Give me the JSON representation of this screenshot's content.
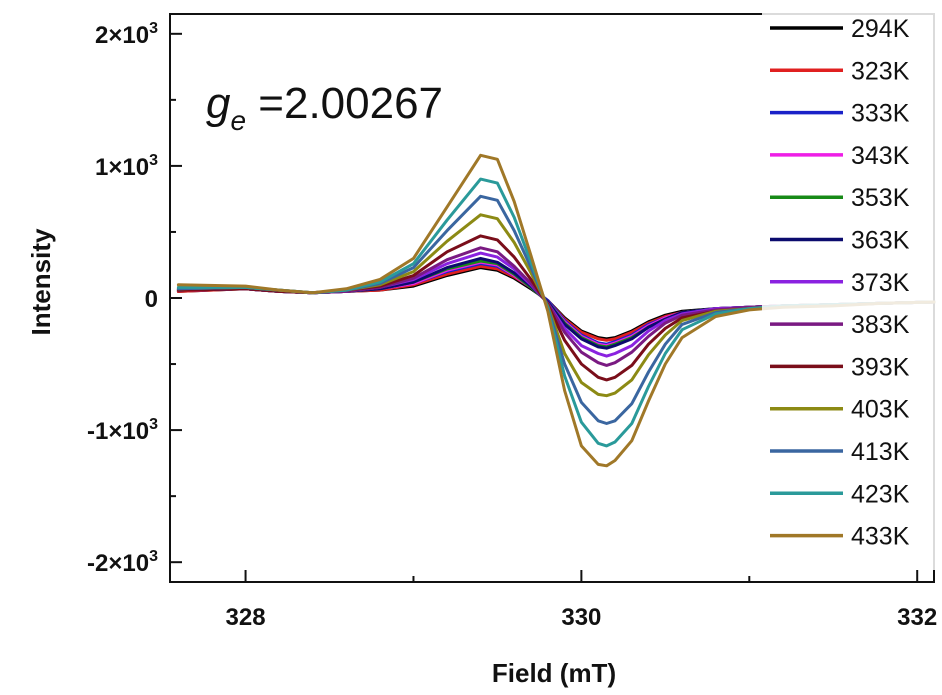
{
  "chart_data": {
    "type": "line",
    "xlabel": "Field (mT)",
    "ylabel": "Intensity",
    "xlim": [
      327.55,
      332.1
    ],
    "ylim": [
      -2150,
      2150
    ],
    "x_ticks": [
      328,
      330,
      332
    ],
    "x_tick_labels": [
      "328",
      "330",
      "332"
    ],
    "y_ticks": [
      2000,
      1000,
      0,
      -1000,
      -2000
    ],
    "y_tick_labels": [
      {
        "mantissa": "2×10",
        "exp": "3"
      },
      {
        "mantissa": "1×10",
        "exp": "3"
      },
      {
        "mantissa": "0",
        "exp": ""
      },
      {
        "mantissa": "-1×10",
        "exp": "3"
      },
      {
        "mantissa": "-2×10",
        "exp": "3"
      }
    ],
    "annotation": {
      "symbol": "g",
      "subscript": "e",
      "text": " =2.00267"
    },
    "legend_position": "top-right",
    "grid": false,
    "x": [
      327.6,
      328.0,
      328.2,
      328.4,
      328.6,
      328.8,
      329.0,
      329.2,
      329.4,
      329.5,
      329.6,
      329.7,
      329.8,
      329.9,
      330.0,
      330.1,
      330.15,
      330.2,
      330.3,
      330.4,
      330.5,
      330.6,
      330.8,
      331.0,
      331.2,
      331.5,
      331.8,
      332.1
    ],
    "series": [
      {
        "name": "294K",
        "color": "#000000",
        "values": [
          50,
          70,
          50,
          40,
          50,
          60,
          90,
          170,
          230,
          210,
          150,
          70,
          -20,
          -150,
          -250,
          -300,
          -310,
          -300,
          -250,
          -180,
          -130,
          -100,
          -80,
          -70,
          -60,
          -50,
          -40,
          -30
        ]
      },
      {
        "name": "323K",
        "color": "#e02020",
        "values": [
          50,
          70,
          50,
          40,
          50,
          60,
          100,
          180,
          240,
          220,
          160,
          80,
          -20,
          -160,
          -260,
          -310,
          -320,
          -310,
          -260,
          -190,
          -140,
          -110,
          -80,
          -70,
          -60,
          -50,
          -40,
          -30
        ]
      },
      {
        "name": "333K",
        "color": "#1a22c8",
        "values": [
          60,
          70,
          50,
          40,
          50,
          70,
          110,
          200,
          260,
          240,
          170,
          80,
          -20,
          -170,
          -280,
          -340,
          -350,
          -330,
          -280,
          -200,
          -150,
          -110,
          -80,
          -70,
          -60,
          -50,
          -40,
          -30
        ]
      },
      {
        "name": "343K",
        "color": "#ee1ee6",
        "values": [
          60,
          70,
          50,
          40,
          50,
          70,
          110,
          210,
          270,
          250,
          170,
          80,
          -30,
          -180,
          -290,
          -350,
          -360,
          -340,
          -290,
          -210,
          -150,
          -110,
          -80,
          -70,
          -60,
          -50,
          -40,
          -30
        ]
      },
      {
        "name": "353K",
        "color": "#178a17",
        "values": [
          60,
          70,
          50,
          40,
          50,
          70,
          120,
          220,
          280,
          260,
          180,
          80,
          -30,
          -190,
          -300,
          -360,
          -370,
          -350,
          -300,
          -220,
          -160,
          -110,
          -80,
          -70,
          -60,
          -50,
          -40,
          -30
        ]
      },
      {
        "name": "363K",
        "color": "#0b0b6e",
        "values": [
          60,
          70,
          50,
          40,
          50,
          70,
          120,
          230,
          300,
          270,
          190,
          90,
          -30,
          -200,
          -310,
          -370,
          -380,
          -360,
          -310,
          -220,
          -160,
          -110,
          -80,
          -70,
          -60,
          -50,
          -40,
          -30
        ]
      },
      {
        "name": "373K",
        "color": "#8a22e0",
        "values": [
          60,
          70,
          50,
          40,
          50,
          80,
          140,
          260,
          340,
          310,
          220,
          100,
          -40,
          -230,
          -360,
          -420,
          -440,
          -420,
          -360,
          -250,
          -170,
          -120,
          -80,
          -70,
          -60,
          -50,
          -40,
          -30
        ]
      },
      {
        "name": "383K",
        "color": "#7a1a82",
        "values": [
          60,
          70,
          50,
          40,
          50,
          80,
          150,
          290,
          380,
          350,
          240,
          110,
          -40,
          -260,
          -410,
          -490,
          -510,
          -490,
          -410,
          -290,
          -190,
          -130,
          -90,
          -70,
          -60,
          -50,
          -40,
          -30
        ]
      },
      {
        "name": "393K",
        "color": "#7a0e1a",
        "values": [
          60,
          70,
          50,
          40,
          60,
          90,
          170,
          350,
          470,
          440,
          310,
          140,
          -50,
          -320,
          -500,
          -600,
          -620,
          -600,
          -510,
          -350,
          -230,
          -150,
          -100,
          -80,
          -60,
          -50,
          -40,
          -30
        ]
      },
      {
        "name": "403K",
        "color": "#8c8a14",
        "values": [
          70,
          80,
          60,
          40,
          60,
          100,
          200,
          430,
          630,
          600,
          420,
          190,
          -60,
          -420,
          -640,
          -730,
          -740,
          -720,
          -620,
          -430,
          -280,
          -170,
          -100,
          -80,
          -60,
          -50,
          -40,
          -30
        ]
      },
      {
        "name": "413K",
        "color": "#3a66a0",
        "values": [
          70,
          80,
          60,
          40,
          60,
          110,
          230,
          510,
          770,
          740,
          510,
          230,
          -70,
          -500,
          -790,
          -930,
          -950,
          -930,
          -800,
          -560,
          -350,
          -200,
          -110,
          -80,
          -60,
          -50,
          -40,
          -30
        ]
      },
      {
        "name": "423K",
        "color": "#2a9a9a",
        "values": [
          80,
          80,
          60,
          40,
          60,
          120,
          260,
          590,
          900,
          870,
          610,
          270,
          -80,
          -590,
          -940,
          -1100,
          -1120,
          -1090,
          -950,
          -670,
          -420,
          -240,
          -120,
          -80,
          -60,
          -50,
          -40,
          -30
        ]
      },
      {
        "name": "433K",
        "color": "#a07828",
        "values": [
          100,
          90,
          60,
          40,
          70,
          140,
          300,
          690,
          1080,
          1050,
          730,
          320,
          -100,
          -700,
          -1120,
          -1260,
          -1270,
          -1230,
          -1080,
          -780,
          -500,
          -300,
          -140,
          -90,
          -70,
          -60,
          -40,
          -30
        ]
      }
    ]
  }
}
